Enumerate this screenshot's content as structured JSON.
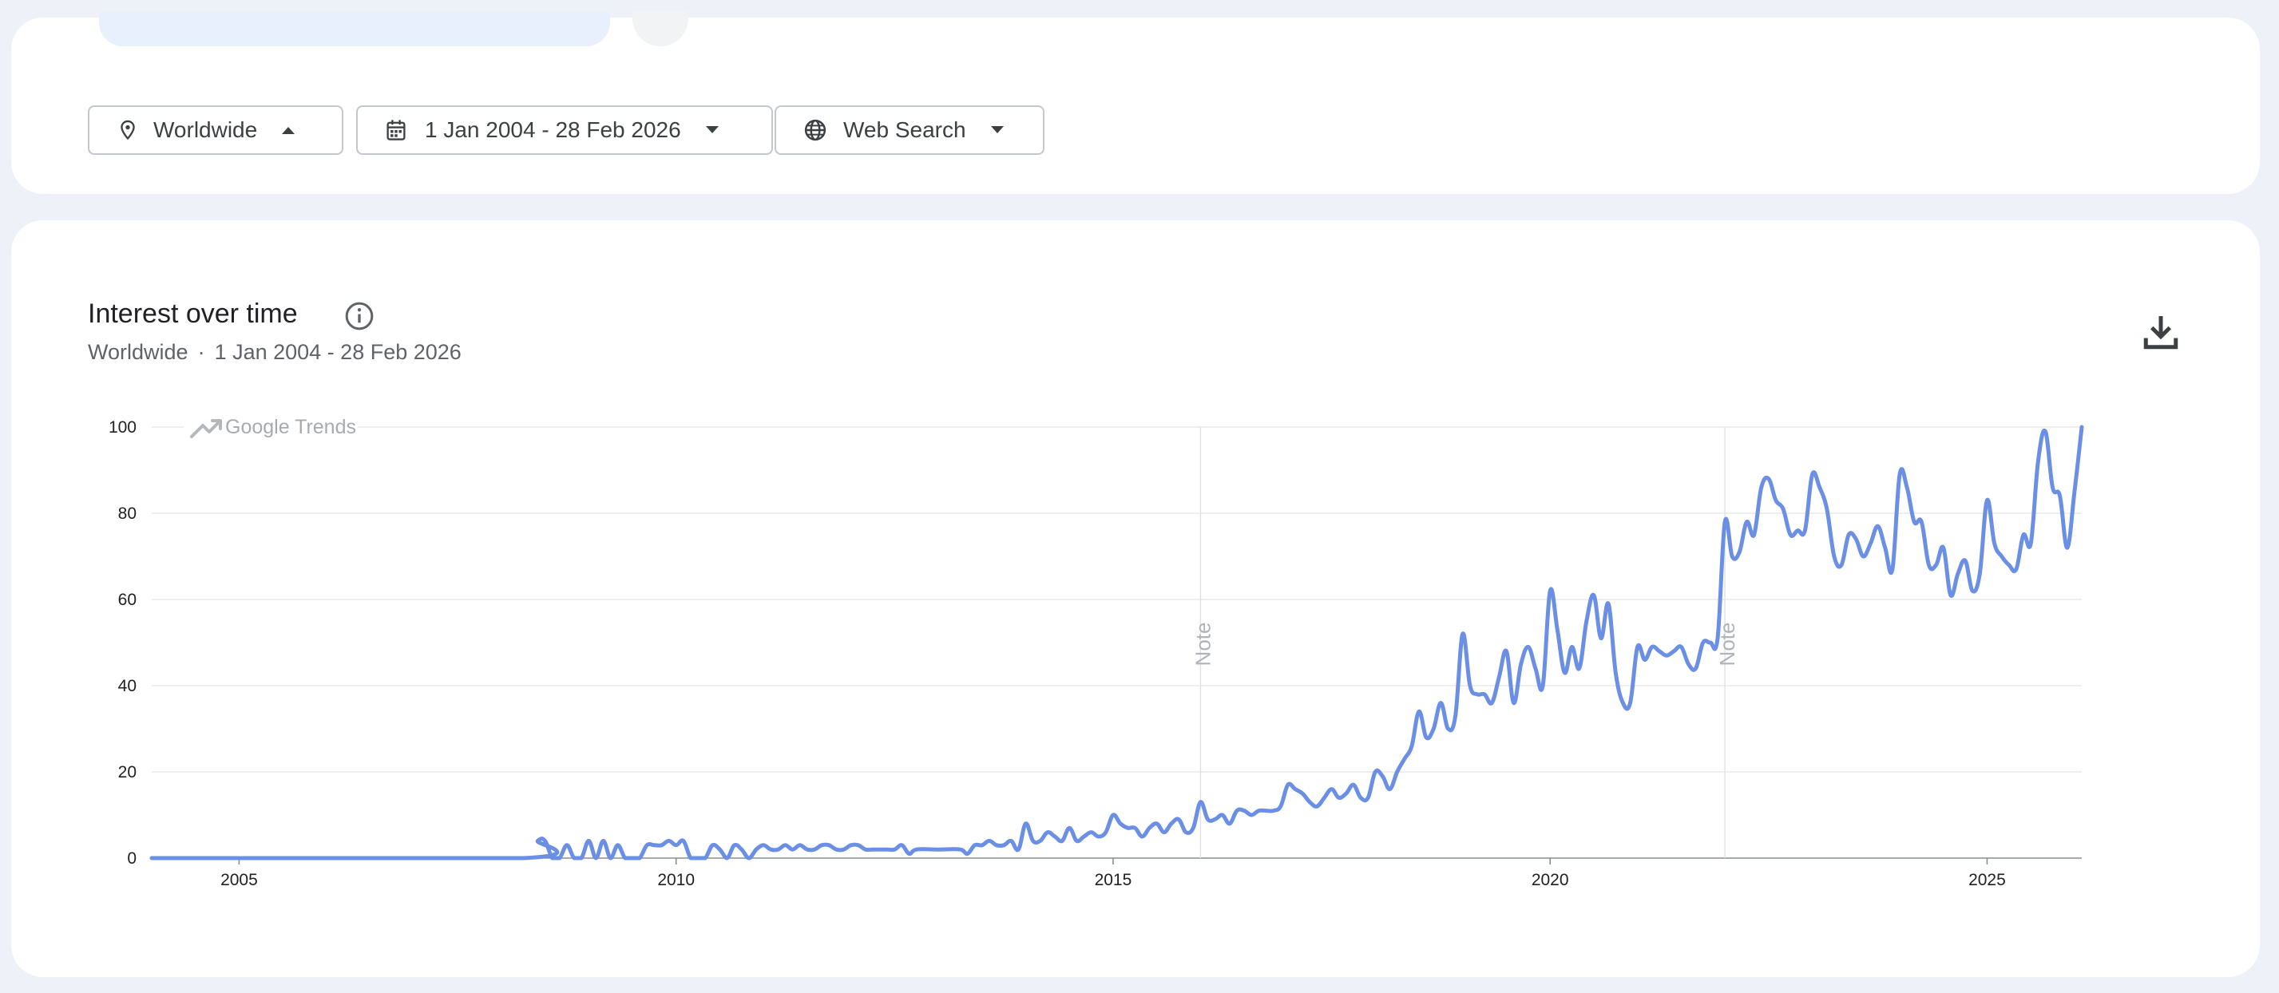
{
  "filters": {
    "location": {
      "label": "Worldwide",
      "icon": "location-pin-icon",
      "caret": "caret-up-icon"
    },
    "date": {
      "label": "1 Jan 2004 - 28 Feb 2026",
      "icon": "calendar-icon",
      "caret": "caret-down-icon"
    },
    "property": {
      "label": "Web Search",
      "icon": "globe-icon",
      "caret": "caret-down-icon"
    }
  },
  "panel": {
    "title": "Interest over time",
    "subtitle_location": "Worldwide",
    "subtitle_separator": "·",
    "subtitle_range": "1 Jan 2004 - 28 Feb 2026",
    "download_icon": "download-icon",
    "info_icon": "info-icon"
  },
  "chart_data": {
    "type": "line",
    "watermark": "Google Trends",
    "x_range": [
      "2004-01",
      "2026-02"
    ],
    "ylim": [
      0,
      100
    ],
    "y_ticks": [
      "0",
      "20",
      "40",
      "60",
      "80",
      "100"
    ],
    "x_ticks": [
      {
        "label": "2005",
        "date": "2005-01"
      },
      {
        "label": "2010",
        "date": "2010-01"
      },
      {
        "label": "2015",
        "date": "2015-01"
      },
      {
        "label": "2020",
        "date": "2020-01"
      },
      {
        "label": "2025",
        "date": "2025-01"
      }
    ],
    "notes": [
      {
        "label": "Note",
        "date": "2016-01"
      },
      {
        "label": "Note",
        "date": "2022-01"
      }
    ],
    "grid": true,
    "color": "#6a8fe4",
    "series": [
      {
        "points": [
          [
            "2004-01",
            0
          ],
          [
            "2008-04",
            0
          ],
          [
            "2008-06",
            4
          ],
          [
            "2008-07",
            4
          ],
          [
            "2008-08",
            0
          ],
          [
            "2008-09",
            0
          ],
          [
            "2008-10",
            3
          ],
          [
            "2008-11",
            0
          ],
          [
            "2008-12",
            0
          ],
          [
            "2009-01",
            4
          ],
          [
            "2009-02",
            0
          ],
          [
            "2009-03",
            4
          ],
          [
            "2009-04",
            0
          ],
          [
            "2009-05",
            3
          ],
          [
            "2009-06",
            0
          ],
          [
            "2009-07",
            0
          ],
          [
            "2009-08",
            0
          ],
          [
            "2009-09",
            3
          ],
          [
            "2009-10",
            3
          ],
          [
            "2009-11",
            3
          ],
          [
            "2009-12",
            4
          ],
          [
            "2010-01",
            3
          ],
          [
            "2010-02",
            4
          ],
          [
            "2010-03",
            0
          ],
          [
            "2010-04",
            0
          ],
          [
            "2010-05",
            0
          ],
          [
            "2010-06",
            3
          ],
          [
            "2010-07",
            2
          ],
          [
            "2010-08",
            0
          ],
          [
            "2010-09",
            3
          ],
          [
            "2010-10",
            2
          ],
          [
            "2010-11",
            0
          ],
          [
            "2010-12",
            2
          ],
          [
            "2011-01",
            3
          ],
          [
            "2011-02",
            2
          ],
          [
            "2011-03",
            2
          ],
          [
            "2011-04",
            3
          ],
          [
            "2011-05",
            2
          ],
          [
            "2011-06",
            3
          ],
          [
            "2011-07",
            2
          ],
          [
            "2011-08",
            2
          ],
          [
            "2011-09",
            3
          ],
          [
            "2011-10",
            3
          ],
          [
            "2011-11",
            2
          ],
          [
            "2011-12",
            2
          ],
          [
            "2012-01",
            3
          ],
          [
            "2012-02",
            3
          ],
          [
            "2012-03",
            2
          ],
          [
            "2012-04",
            2
          ],
          [
            "2012-05",
            2
          ],
          [
            "2012-06",
            2
          ],
          [
            "2012-07",
            2
          ],
          [
            "2012-08",
            3
          ],
          [
            "2012-09",
            1
          ],
          [
            "2012-10",
            2
          ],
          [
            "2013-01",
            2
          ],
          [
            "2013-04",
            2
          ],
          [
            "2013-05",
            1
          ],
          [
            "2013-06",
            3
          ],
          [
            "2013-07",
            3
          ],
          [
            "2013-08",
            4
          ],
          [
            "2013-09",
            3
          ],
          [
            "2013-10",
            3
          ],
          [
            "2013-11",
            4
          ],
          [
            "2013-12",
            2
          ],
          [
            "2014-01",
            8
          ],
          [
            "2014-02",
            4
          ],
          [
            "2014-03",
            4
          ],
          [
            "2014-04",
            6
          ],
          [
            "2014-05",
            5
          ],
          [
            "2014-06",
            4
          ],
          [
            "2014-07",
            7
          ],
          [
            "2014-08",
            4
          ],
          [
            "2014-09",
            5
          ],
          [
            "2014-10",
            6
          ],
          [
            "2014-11",
            5
          ],
          [
            "2014-12",
            6
          ],
          [
            "2015-01",
            10
          ],
          [
            "2015-02",
            8
          ],
          [
            "2015-03",
            7
          ],
          [
            "2015-04",
            7
          ],
          [
            "2015-05",
            5
          ],
          [
            "2015-06",
            7
          ],
          [
            "2015-07",
            8
          ],
          [
            "2015-08",
            6
          ],
          [
            "2015-09",
            8
          ],
          [
            "2015-10",
            9
          ],
          [
            "2015-11",
            6
          ],
          [
            "2015-12",
            7
          ],
          [
            "2016-01",
            13
          ],
          [
            "2016-02",
            9
          ],
          [
            "2016-03",
            9
          ],
          [
            "2016-04",
            10
          ],
          [
            "2016-05",
            8
          ],
          [
            "2016-06",
            11
          ],
          [
            "2016-07",
            11
          ],
          [
            "2016-08",
            10
          ],
          [
            "2016-09",
            11
          ],
          [
            "2016-10",
            11
          ],
          [
            "2016-11",
            11
          ],
          [
            "2016-12",
            12
          ],
          [
            "2017-01",
            17
          ],
          [
            "2017-02",
            16
          ],
          [
            "2017-03",
            15
          ],
          [
            "2017-04",
            13
          ],
          [
            "2017-05",
            12
          ],
          [
            "2017-06",
            14
          ],
          [
            "2017-07",
            16
          ],
          [
            "2017-08",
            14
          ],
          [
            "2017-09",
            15
          ],
          [
            "2017-10",
            17
          ],
          [
            "2017-11",
            14
          ],
          [
            "2017-12",
            14
          ],
          [
            "2018-01",
            20
          ],
          [
            "2018-02",
            19
          ],
          [
            "2018-03",
            16
          ],
          [
            "2018-04",
            20
          ],
          [
            "2018-05",
            23
          ],
          [
            "2018-06",
            26
          ],
          [
            "2018-07",
            34
          ],
          [
            "2018-08",
            28
          ],
          [
            "2018-09",
            30
          ],
          [
            "2018-10",
            36
          ],
          [
            "2018-11",
            30
          ],
          [
            "2018-12",
            33
          ],
          [
            "2019-01",
            52
          ],
          [
            "2019-02",
            40
          ],
          [
            "2019-03",
            38
          ],
          [
            "2019-04",
            38
          ],
          [
            "2019-05",
            36
          ],
          [
            "2019-06",
            42
          ],
          [
            "2019-07",
            48
          ],
          [
            "2019-08",
            36
          ],
          [
            "2019-09",
            45
          ],
          [
            "2019-10",
            49
          ],
          [
            "2019-11",
            44
          ],
          [
            "2019-12",
            40
          ],
          [
            "2020-01",
            62
          ],
          [
            "2020-02",
            53
          ],
          [
            "2020-03",
            43
          ],
          [
            "2020-04",
            49
          ],
          [
            "2020-05",
            44
          ],
          [
            "2020-06",
            55
          ],
          [
            "2020-07",
            61
          ],
          [
            "2020-08",
            51
          ],
          [
            "2020-09",
            59
          ],
          [
            "2020-10",
            43
          ],
          [
            "2020-11",
            36
          ],
          [
            "2020-12",
            36
          ],
          [
            "2021-01",
            49
          ],
          [
            "2021-02",
            46
          ],
          [
            "2021-03",
            49
          ],
          [
            "2021-04",
            48
          ],
          [
            "2021-05",
            47
          ],
          [
            "2021-06",
            48
          ],
          [
            "2021-07",
            49
          ],
          [
            "2021-08",
            45
          ],
          [
            "2021-09",
            44
          ],
          [
            "2021-10",
            50
          ],
          [
            "2021-11",
            50
          ],
          [
            "2021-12",
            51
          ],
          [
            "2022-01",
            78
          ],
          [
            "2022-02",
            70
          ],
          [
            "2022-03",
            71
          ],
          [
            "2022-04",
            78
          ],
          [
            "2022-05",
            75
          ],
          [
            "2022-06",
            86
          ],
          [
            "2022-07",
            88
          ],
          [
            "2022-08",
            83
          ],
          [
            "2022-09",
            81
          ],
          [
            "2022-10",
            75
          ],
          [
            "2022-11",
            76
          ],
          [
            "2022-12",
            76
          ],
          [
            "2023-01",
            89
          ],
          [
            "2023-02",
            86
          ],
          [
            "2023-03",
            81
          ],
          [
            "2023-04",
            70
          ],
          [
            "2023-05",
            68
          ],
          [
            "2023-06",
            75
          ],
          [
            "2023-07",
            74
          ],
          [
            "2023-08",
            70
          ],
          [
            "2023-09",
            73
          ],
          [
            "2023-10",
            77
          ],
          [
            "2023-11",
            72
          ],
          [
            "2023-12",
            67
          ],
          [
            "2024-01",
            89
          ],
          [
            "2024-02",
            86
          ],
          [
            "2024-03",
            78
          ],
          [
            "2024-04",
            78
          ],
          [
            "2024-05",
            68
          ],
          [
            "2024-06",
            68
          ],
          [
            "2024-07",
            72
          ],
          [
            "2024-08",
            61
          ],
          [
            "2024-09",
            66
          ],
          [
            "2024-10",
            69
          ],
          [
            "2024-11",
            62
          ],
          [
            "2024-12",
            66
          ],
          [
            "2025-01",
            83
          ],
          [
            "2025-02",
            73
          ],
          [
            "2025-03",
            70
          ],
          [
            "2025-04",
            68
          ],
          [
            "2025-05",
            67
          ],
          [
            "2025-06",
            75
          ],
          [
            "2025-07",
            73
          ],
          [
            "2025-08",
            92
          ],
          [
            "2025-09",
            99
          ],
          [
            "2025-10",
            86
          ],
          [
            "2025-11",
            84
          ],
          [
            "2025-12",
            72
          ],
          [
            "2026-01",
            85
          ],
          [
            "2026-02",
            100
          ]
        ]
      }
    ]
  }
}
